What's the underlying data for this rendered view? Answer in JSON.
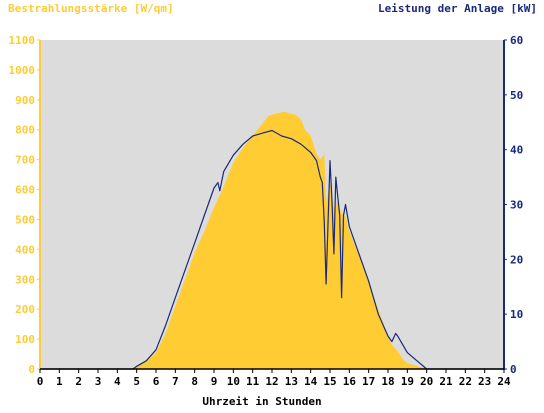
{
  "chart_data": {
    "type": "area",
    "left_axis_title": "Bestrahlungsstärke [W/qm]",
    "right_axis_title": "Leistung der Anlage [kW]",
    "xlabel": "Uhrzeit in Stunden",
    "xlim": [
      0,
      24
    ],
    "ylim_left": [
      0,
      1100
    ],
    "ylim_right": [
      0,
      60
    ],
    "x_ticks": [
      "0",
      "1",
      "2",
      "3",
      "4",
      "5",
      "6",
      "7",
      "8",
      "9",
      "10",
      "11",
      "12",
      "13",
      "14",
      "15",
      "16",
      "17",
      "18",
      "19",
      "20",
      "21",
      "22",
      "23",
      "24"
    ],
    "left_ticks": [
      "0",
      "100",
      "200",
      "300",
      "400",
      "500",
      "600",
      "700",
      "800",
      "900",
      "1000",
      "1100"
    ],
    "right_ticks": [
      "0",
      "10",
      "20",
      "30",
      "40",
      "50",
      "60"
    ],
    "colors": {
      "plot_background": "#dcdcdc",
      "irradiance": "#ffcc33",
      "power": "#1a2a7a",
      "left_axis_text": "#ffcc33",
      "right_axis_text": "#1a2a7a"
    },
    "series": [
      {
        "name": "Bestrahlungsstärke [W/qm]",
        "axis": "left",
        "style": "area",
        "x": [
          0,
          4.8,
          5.0,
          5.5,
          6.0,
          6.5,
          7.0,
          7.5,
          8.0,
          8.5,
          9.0,
          9.5,
          10.0,
          10.5,
          11.0,
          11.5,
          11.8,
          12.0,
          12.3,
          12.6,
          12.9,
          13.2,
          13.5,
          13.7,
          14.0,
          14.3,
          14.5,
          14.7,
          14.8,
          15.0,
          15.2,
          15.4,
          15.6,
          15.8,
          16.0,
          16.5,
          17.0,
          17.5,
          18.0,
          18.2,
          18.5,
          18.8,
          19.0,
          19.5,
          20.0,
          24
        ],
        "values": [
          0,
          0,
          10,
          25,
          55,
          120,
          210,
          300,
          390,
          460,
          540,
          610,
          690,
          740,
          780,
          820,
          845,
          850,
          855,
          860,
          855,
          850,
          835,
          800,
          780,
          720,
          700,
          720,
          560,
          620,
          540,
          560,
          520,
          510,
          460,
          380,
          290,
          200,
          110,
          80,
          60,
          30,
          20,
          10,
          0,
          0
        ]
      },
      {
        "name": "Leistung der Anlage [kW]",
        "axis": "right",
        "style": "line",
        "x": [
          0,
          4.8,
          5.0,
          5.5,
          6.0,
          6.5,
          7.0,
          7.5,
          8.0,
          8.5,
          9.0,
          9.2,
          9.3,
          9.5,
          10.0,
          10.5,
          11.0,
          11.5,
          12.0,
          12.5,
          13.0,
          13.5,
          14.0,
          14.3,
          14.5,
          14.6,
          14.7,
          14.8,
          15.0,
          15.1,
          15.2,
          15.3,
          15.5,
          15.6,
          15.7,
          15.8,
          16.0,
          16.5,
          17.0,
          17.5,
          18.0,
          18.2,
          18.4,
          18.5,
          19.0,
          19.5,
          20.0,
          24
        ],
        "values": [
          0,
          0,
          0.5,
          1.5,
          3.5,
          8,
          13,
          18,
          23,
          28,
          33,
          34,
          32.5,
          36,
          39,
          41,
          42.5,
          43,
          43.5,
          42.5,
          42,
          41,
          39.5,
          38,
          35,
          34,
          27,
          15.5,
          38,
          31,
          21,
          35,
          28,
          13,
          28,
          30,
          26,
          21,
          16,
          10,
          6,
          5,
          6.5,
          6,
          3,
          1.5,
          0,
          0
        ]
      }
    ]
  }
}
